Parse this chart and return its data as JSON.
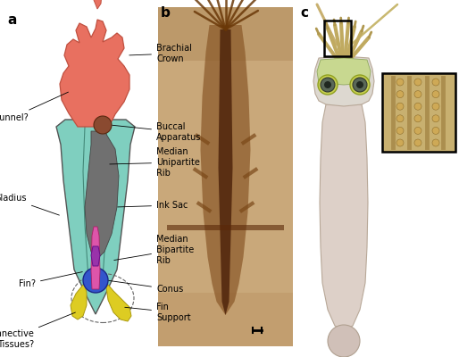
{
  "panel_labels": [
    "a",
    "b",
    "c"
  ],
  "background_color": "#ffffff",
  "gladius_color": "#7fcfbf",
  "gladius_outline": "#555555",
  "crown_color": "#e87060",
  "crown_outline": "#c05040",
  "buccal_color": "#8a4a30",
  "ink_sac_color": "#707070",
  "conus_color": "#3355cc",
  "fin_color": "#9933aa",
  "fin_support_color": "#ddcc22",
  "pink_stripe_color": "#dd55aa",
  "fossil_bg": "#b8956a",
  "fossil_dark": "#6a3810",
  "panel_label_fontsize": 11,
  "ann_fontsize": 7,
  "ann_color": "#000000"
}
